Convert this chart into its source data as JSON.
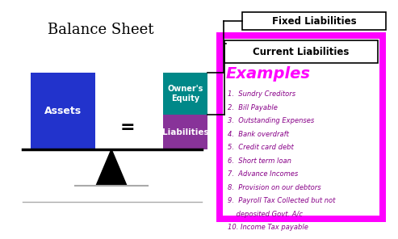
{
  "title": "Balance Sheet",
  "bg_color": "#ffffff",
  "assets_color": "#2233cc",
  "assets_label": "Assets",
  "owners_equity_color": "#008888",
  "owners_equity_label": "Owner's\nEquity",
  "liabilities_color": "#883399",
  "liabilities_label": "Liabilities",
  "equals_sign": "=",
  "fixed_liabilities_label": "Fixed Liabilities",
  "current_liabilities_label": "Current Liabilities",
  "examples_label": "Examples",
  "examples_color": "#ff00ff",
  "panel_border_color": "#ff00ff",
  "panel_bg": "#ff00ff",
  "panel_inner_bg": "#ffffff",
  "items": [
    "1.  Sundry Creditors",
    "2.  Bill Payable",
    "3.  Outstanding Expenses",
    "4.  Bank overdraft",
    "5.  Credit card debt",
    "6.  Short term loan",
    "7.  Advance Incomes",
    "8.  Provision on our debtors",
    "9.  Payroll Tax Collected but not",
    "    deposited Govt. A/c",
    "10. Income Tax payable"
  ],
  "items_color": "#880088"
}
